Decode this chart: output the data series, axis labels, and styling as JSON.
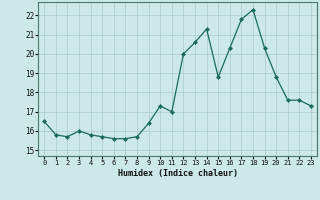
{
  "x": [
    0,
    1,
    2,
    3,
    4,
    5,
    6,
    7,
    8,
    9,
    10,
    11,
    12,
    13,
    14,
    15,
    16,
    17,
    18,
    19,
    20,
    21,
    22,
    23
  ],
  "y": [
    16.5,
    15.8,
    15.7,
    16.0,
    15.8,
    15.7,
    15.6,
    15.6,
    15.7,
    16.4,
    17.3,
    17.0,
    20.0,
    20.6,
    21.3,
    18.8,
    20.3,
    21.8,
    22.3,
    20.3,
    18.8,
    17.6,
    17.6,
    17.3
  ],
  "xlabel": "Humidex (Indice chaleur)",
  "ylim": [
    14.7,
    22.7
  ],
  "yticks": [
    15,
    16,
    17,
    18,
    19,
    20,
    21,
    22
  ],
  "xticks": [
    0,
    1,
    2,
    3,
    4,
    5,
    6,
    7,
    8,
    9,
    10,
    11,
    12,
    13,
    14,
    15,
    16,
    17,
    18,
    19,
    20,
    21,
    22,
    23
  ],
  "line_color": "#1a6b5a",
  "marker": "D",
  "marker_size": 2.0,
  "bg_color": "#cce8e8",
  "grid_color": "#aacccc"
}
